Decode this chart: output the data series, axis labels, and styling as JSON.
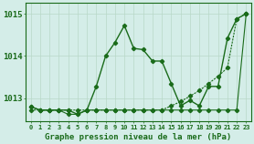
{
  "xlabel": "Graphe pression niveau de la mer (hPa)",
  "hours": [
    0,
    1,
    2,
    3,
    4,
    5,
    6,
    7,
    8,
    9,
    10,
    11,
    12,
    13,
    14,
    15,
    16,
    17,
    18,
    19,
    20,
    21,
    22,
    23
  ],
  "series_main": [
    1012.8,
    1012.72,
    1012.72,
    1012.72,
    1012.72,
    1012.62,
    1012.72,
    1013.28,
    1014.0,
    1014.32,
    1014.72,
    1014.18,
    1014.15,
    1013.88,
    1013.88,
    1013.35,
    1012.82,
    1012.95,
    1012.82,
    1013.28,
    1013.28,
    1014.42,
    1014.88,
    1015.0
  ],
  "series_diag": [
    1012.72,
    1012.72,
    1012.72,
    1012.72,
    1012.72,
    1012.72,
    1012.72,
    1012.72,
    1012.72,
    1012.72,
    1012.72,
    1012.72,
    1012.72,
    1012.72,
    1012.72,
    1012.82,
    1012.92,
    1013.05,
    1013.18,
    1013.35,
    1013.52,
    1013.72,
    1014.88,
    1015.0
  ],
  "series_flat": [
    1012.8,
    1012.72,
    1012.72,
    1012.72,
    1012.62,
    1012.62,
    1012.72,
    1012.72,
    1012.72,
    1012.72,
    1012.72,
    1012.72,
    1012.72,
    1012.72,
    1012.72,
    1012.72,
    1012.72,
    1012.72,
    1012.72,
    1012.72,
    1012.72,
    1012.72,
    1012.72,
    1015.0
  ],
  "line_color": "#1a6b1a",
  "bg_color": "#d4ede8",
  "grid_color": "#b8d8c8",
  "ylim_min": 1012.45,
  "ylim_max": 1015.25,
  "yticks": [
    1013,
    1014,
    1015
  ],
  "marker": "D",
  "marker_size": 2.2,
  "lw_main": 1.0,
  "lw_diag": 0.8,
  "lw_flat": 0.8
}
